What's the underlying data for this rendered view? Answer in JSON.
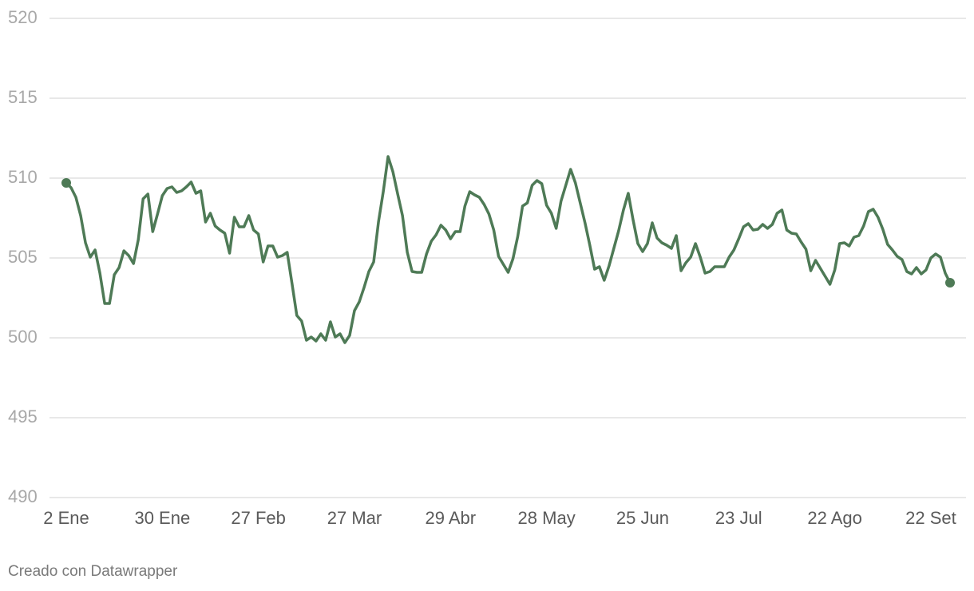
{
  "chart_data": {
    "type": "line",
    "categories": [
      "2 Ene",
      null,
      null,
      null,
      null,
      null,
      null,
      null,
      null,
      null,
      null,
      null,
      null,
      null,
      null,
      null,
      null,
      null,
      null,
      null,
      "30 Ene",
      null,
      null,
      null,
      null,
      null,
      null,
      null,
      null,
      null,
      null,
      null,
      null,
      null,
      null,
      null,
      null,
      null,
      null,
      null,
      "27 Feb",
      null,
      null,
      null,
      null,
      null,
      null,
      null,
      null,
      null,
      null,
      null,
      null,
      null,
      null,
      null,
      null,
      null,
      null,
      null,
      "27 Mar",
      null,
      null,
      null,
      null,
      null,
      null,
      null,
      null,
      null,
      null,
      null,
      null,
      null,
      null,
      null,
      null,
      null,
      null,
      null,
      "29 Abr",
      null,
      null,
      null,
      null,
      null,
      null,
      null,
      null,
      null,
      null,
      null,
      null,
      null,
      null,
      null,
      null,
      null,
      null,
      null,
      "28 May",
      null,
      null,
      null,
      null,
      null,
      null,
      null,
      null,
      null,
      null,
      null,
      null,
      null,
      null,
      null,
      null,
      null,
      null,
      null,
      "25 Jun",
      null,
      null,
      null,
      null,
      null,
      null,
      null,
      null,
      null,
      null,
      null,
      null,
      null,
      null,
      null,
      null,
      null,
      null,
      null,
      "23 Jul",
      null,
      null,
      null,
      null,
      null,
      null,
      null,
      null,
      null,
      null,
      null,
      null,
      null,
      null,
      null,
      null,
      null,
      null,
      null,
      "22 Ago",
      null,
      null,
      null,
      null,
      null,
      null,
      null,
      null,
      null,
      null,
      null,
      null,
      null,
      null,
      null,
      null,
      null,
      null,
      null,
      "22 Set",
      null,
      null,
      null,
      null
    ],
    "values": [
      509.7,
      509.4,
      508.8,
      507.65,
      505.95,
      505.05,
      505.5,
      504.05,
      502.15,
      502.15,
      503.95,
      504.4,
      505.45,
      505.15,
      504.65,
      506.15,
      508.7,
      509.0,
      506.65,
      507.75,
      508.9,
      509.35,
      509.45,
      509.1,
      509.2,
      509.45,
      509.75,
      509.05,
      509.2,
      507.25,
      507.8,
      507.0,
      506.75,
      506.55,
      505.3,
      507.55,
      506.95,
      506.95,
      507.65,
      506.75,
      506.5,
      504.75,
      505.75,
      505.75,
      505.05,
      505.15,
      505.35,
      503.4,
      501.4,
      501.05,
      499.85,
      500.05,
      499.8,
      500.25,
      499.85,
      501.0,
      500.05,
      500.25,
      499.7,
      500.15,
      501.7,
      502.25,
      503.15,
      504.15,
      504.75,
      507.25,
      509.15,
      511.35,
      510.4,
      509.0,
      507.65,
      505.35,
      504.15,
      504.1,
      504.1,
      505.25,
      506.05,
      506.45,
      507.05,
      506.75,
      506.2,
      506.65,
      506.65,
      508.25,
      509.15,
      508.95,
      508.8,
      508.35,
      507.75,
      506.75,
      505.1,
      504.6,
      504.1,
      504.95,
      506.35,
      508.25,
      508.45,
      509.55,
      509.85,
      509.65,
      508.3,
      507.8,
      506.85,
      508.55,
      509.55,
      510.55,
      509.7,
      508.45,
      507.2,
      505.8,
      504.3,
      504.45,
      503.6,
      504.5,
      505.6,
      506.7,
      508.0,
      509.05,
      507.4,
      505.9,
      505.4,
      505.9,
      507.2,
      506.25,
      505.95,
      505.8,
      505.6,
      506.4,
      504.2,
      504.7,
      505.05,
      505.9,
      505.05,
      504.05,
      504.15,
      504.45,
      504.45,
      504.45,
      505.05,
      505.5,
      506.2,
      506.95,
      507.15,
      506.75,
      506.8,
      507.1,
      506.85,
      507.1,
      507.8,
      508.0,
      506.75,
      506.55,
      506.5,
      506.0,
      505.55,
      504.2,
      504.85,
      504.35,
      503.85,
      503.35,
      504.25,
      505.9,
      505.95,
      505.75,
      506.3,
      506.4,
      507.0,
      507.9,
      508.05,
      507.55,
      506.8,
      505.85,
      505.5,
      505.1,
      504.9,
      504.15,
      504.0,
      504.4,
      504.0,
      504.25,
      505.0,
      505.25,
      505.05,
      504.05,
      503.45
    ],
    "color": "#4e7a56",
    "ylim": [
      490,
      520
    ],
    "yticks": [
      490,
      495,
      500,
      505,
      510,
      515,
      520
    ],
    "grid": true,
    "credit": "Creado con Datawrapper"
  }
}
